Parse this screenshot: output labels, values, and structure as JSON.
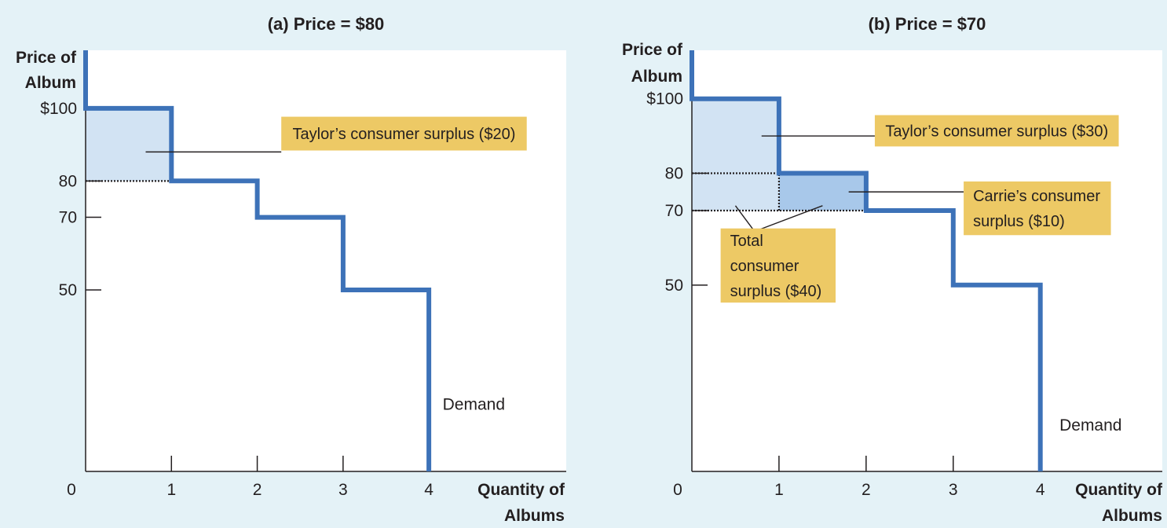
{
  "chart_data": [
    {
      "type": "line",
      "step": true,
      "title": "(a) Price = $80",
      "ylabel": [
        "Price of",
        "Album"
      ],
      "xlabel": [
        "Quantity of",
        "Albums"
      ],
      "origin_label": "0",
      "xlim": [
        0,
        5.6
      ],
      "ylim": [
        0,
        116
      ],
      "x_ticks": [
        {
          "value": 1,
          "label": "1"
        },
        {
          "value": 2,
          "label": "2"
        },
        {
          "value": 3,
          "label": "3"
        },
        {
          "value": 4,
          "label": "4"
        }
      ],
      "y_ticks": [
        {
          "value": 100,
          "label": "$100"
        },
        {
          "value": 80,
          "label": "80"
        },
        {
          "value": 70,
          "label": "70"
        },
        {
          "value": 50,
          "label": "50"
        }
      ],
      "series": [
        {
          "label": "Demand",
          "color": "#3d72b8",
          "points": [
            [
              0,
              116
            ],
            [
              0,
              100
            ],
            [
              1,
              100
            ],
            [
              1,
              80
            ],
            [
              2,
              80
            ],
            [
              2,
              70
            ],
            [
              3,
              70
            ],
            [
              3,
              50
            ],
            [
              4,
              50
            ],
            [
              4,
              0
            ]
          ]
        }
      ],
      "price_lines": [
        {
          "value": 80,
          "x_from": 0,
          "x_to": 1
        }
      ],
      "surplus_areas": [
        {
          "x0": 0,
          "x1": 1,
          "y0": 80,
          "y1": 100,
          "color": "#d2e3f3"
        }
      ],
      "annotations": [
        {
          "lines": [
            "Taylor’s consumer surplus ($20)"
          ],
          "box": {
            "x": 2.28,
            "y": 97.7,
            "w": 2.86,
            "h": 9.3
          },
          "pointers": [
            [
              0.7,
              88
            ]
          ]
        }
      ],
      "demand_label": {
        "text": "Demand",
        "x": 4.16,
        "y": 17
      }
    },
    {
      "type": "line",
      "step": true,
      "title": "(b) Price = $70",
      "ylabel": [
        "Price of",
        "Album"
      ],
      "xlabel": [
        "Quantity of",
        "Albums"
      ],
      "origin_label": "0",
      "xlim": [
        0,
        5.4
      ],
      "ylim": [
        0,
        113
      ],
      "x_ticks": [
        {
          "value": 1,
          "label": "1"
        },
        {
          "value": 2,
          "label": "2"
        },
        {
          "value": 3,
          "label": "3"
        },
        {
          "value": 4,
          "label": "4"
        }
      ],
      "y_ticks": [
        {
          "value": 100,
          "label": "$100"
        },
        {
          "value": 80,
          "label": "80"
        },
        {
          "value": 70,
          "label": "70"
        },
        {
          "value": 50,
          "label": "50"
        }
      ],
      "series": [
        {
          "label": "Demand",
          "color": "#3d72b8",
          "points": [
            [
              0,
              113
            ],
            [
              0,
              100
            ],
            [
              1,
              100
            ],
            [
              1,
              80
            ],
            [
              2,
              80
            ],
            [
              2,
              70
            ],
            [
              3,
              70
            ],
            [
              3,
              50
            ],
            [
              4,
              50
            ],
            [
              4,
              0
            ]
          ]
        }
      ],
      "price_lines": [
        {
          "value": 80,
          "x_from": 0,
          "x_to": 2
        },
        {
          "value": 70,
          "x_from": 0,
          "x_to": 2
        }
      ],
      "vertical_dotted": [
        {
          "x": 1,
          "y_from": 70,
          "y_to": 80
        }
      ],
      "surplus_areas": [
        {
          "x0": 0,
          "x1": 1,
          "y0": 70,
          "y1": 100,
          "color": "#d2e3f3"
        },
        {
          "x0": 1,
          "x1": 2,
          "y0": 70,
          "y1": 80,
          "color": "#a8c8ea"
        }
      ],
      "annotations": [
        {
          "lines": [
            "Taylor’s consumer surplus ($30)"
          ],
          "box": {
            "x": 2.1,
            "y": 95.6,
            "w": 2.8,
            "h": 8.4
          },
          "pointers": [
            [
              0.8,
              90
            ]
          ]
        },
        {
          "lines": [
            "Carrie’s consumer",
            "surplus ($10)"
          ],
          "box": {
            "x": 3.12,
            "y": 77.8,
            "w": 1.69,
            "h": 14.4
          },
          "pointers": [
            [
              1.8,
              75
            ]
          ]
        },
        {
          "lines": [
            "Total",
            "consumer",
            "surplus ($40)"
          ],
          "box": {
            "x": 0.33,
            "y": 65.2,
            "w": 1.32,
            "h": 19.9
          },
          "pointers": [
            [
              0.5,
              71.3
            ],
            [
              1.5,
              71.3
            ]
          ],
          "pointer_apex": [
            0.72,
            64.4
          ]
        }
      ],
      "demand_label": {
        "text": "Demand",
        "x": 4.22,
        "y": 11
      }
    }
  ]
}
